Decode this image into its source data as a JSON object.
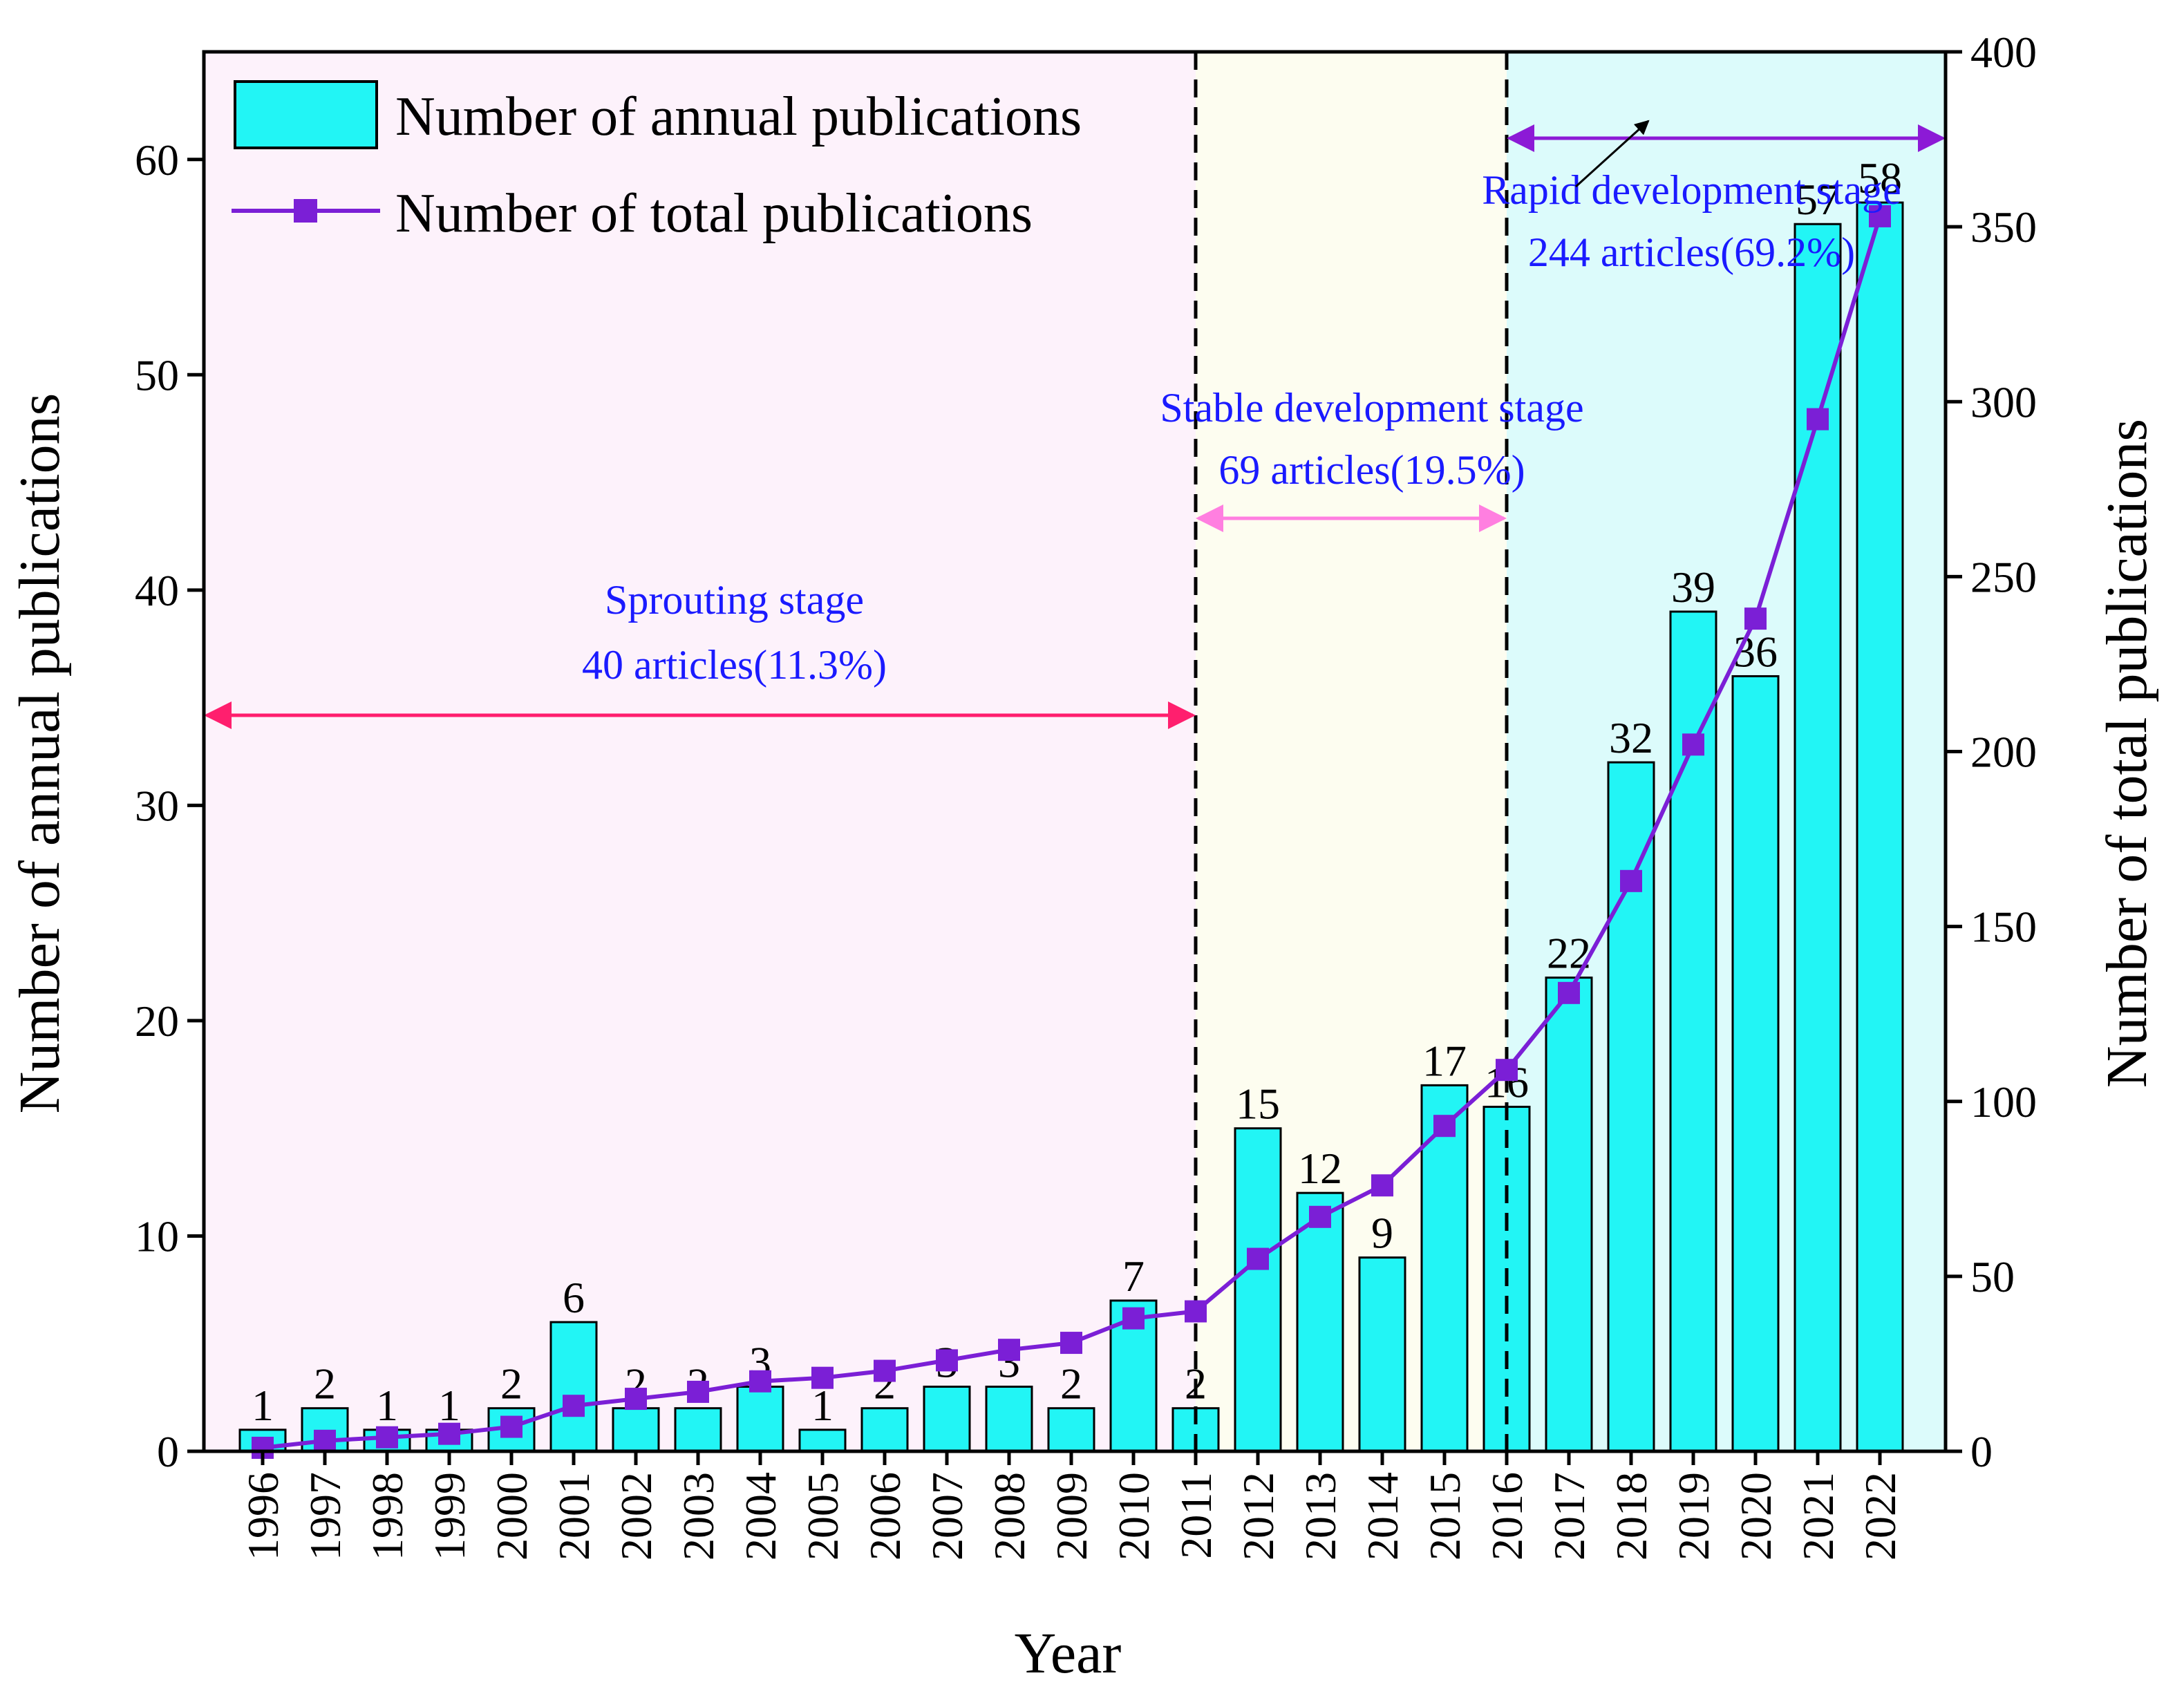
{
  "chart_data": {
    "type": "bar+line",
    "categories": [
      "1996",
      "1997",
      "1998",
      "1999",
      "2000",
      "2001",
      "2002",
      "2003",
      "2004",
      "2005",
      "2006",
      "2007",
      "2008",
      "2009",
      "2010",
      "2011",
      "2012",
      "2013",
      "2014",
      "2015",
      "2016",
      "2017",
      "2018",
      "2019",
      "2020",
      "2021",
      "2022"
    ],
    "series": [
      {
        "name": "Number of annual publications",
        "type": "bar",
        "axis": "left",
        "values": [
          1,
          2,
          1,
          1,
          2,
          6,
          2,
          2,
          3,
          1,
          2,
          3,
          3,
          2,
          7,
          2,
          15,
          12,
          9,
          17,
          16,
          22,
          32,
          39,
          36,
          57,
          58
        ],
        "color": "#22f5f5"
      },
      {
        "name": "Number of total publications",
        "type": "line",
        "axis": "right",
        "values": [
          1,
          3,
          4,
          5,
          7,
          13,
          15,
          17,
          20,
          21,
          23,
          26,
          29,
          31,
          38,
          40,
          55,
          67,
          76,
          93,
          109,
          131,
          163,
          202,
          238,
          295,
          353
        ],
        "color": "#7b1fd6"
      }
    ],
    "xlabel": "Year",
    "ylabel": "Number of annual publications",
    "y2label": "Number of total publications",
    "ylim": [
      0,
      65
    ],
    "y2lim": [
      0,
      400
    ],
    "yticks": [
      "0",
      "10",
      "20",
      "30",
      "40",
      "50",
      "60"
    ],
    "y2ticks": [
      "0",
      "50",
      "100",
      "150",
      "200",
      "250",
      "300",
      "350",
      "400"
    ],
    "legend_position": "top-left",
    "stages": [
      {
        "label": "Sprouting stage",
        "detail": "40 articles(11.3%)",
        "from": "1996",
        "to": "2011",
        "shade": "#fdf2fb",
        "arrow_color": "#ff1f6e"
      },
      {
        "label": "Stable development stage",
        "detail": "69 articles(19.5%)",
        "from": "2011",
        "to": "2016",
        "shade": "#fdfdf0",
        "arrow_color": "#ff7fe0"
      },
      {
        "label": "Rapid development stage",
        "detail": "244 articles(69.2%)",
        "from": "2016",
        "to": "2022",
        "shade": "#dcfbfb",
        "arrow_color": "#8c1ad6"
      }
    ]
  }
}
